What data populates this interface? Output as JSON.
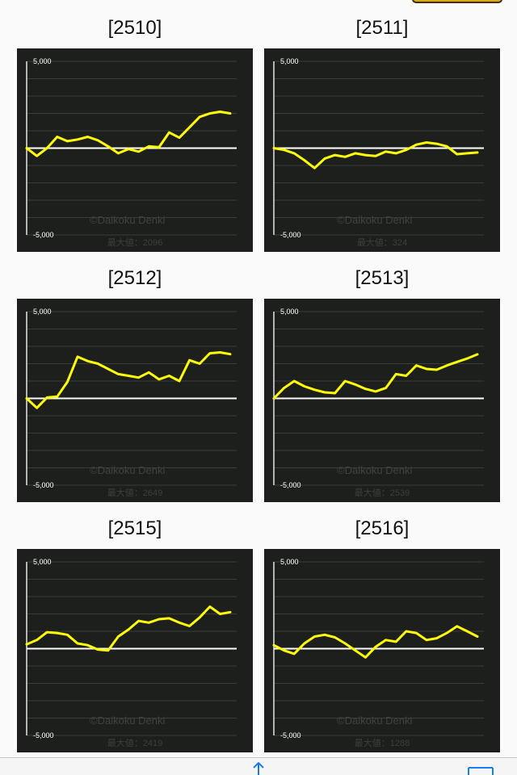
{
  "page": {
    "accent_color": "#ffff00",
    "chart_bg_color": "#1d1f1d",
    "toolbar_icons": [
      "share-icon",
      "bookmark-icon"
    ]
  },
  "chart_data": [
    {
      "type": "line",
      "label": "[2510]",
      "ylim": [
        -5000,
        5000
      ],
      "tick_labels": [
        "5,000",
        "-5,000"
      ],
      "watermark": "©Daikoku Denki",
      "max_value_text": "最大値：2096",
      "series": [
        {
          "x": [
            0,
            5,
            10,
            15,
            20,
            25,
            30,
            35,
            40,
            45,
            50,
            55,
            60,
            65,
            70,
            75,
            80,
            85,
            90,
            95,
            100
          ],
          "y": [
            0,
            -450,
            0,
            650,
            400,
            500,
            650,
            450,
            100,
            -300,
            -50,
            -200,
            100,
            50,
            900,
            600,
            1200,
            1800,
            2000,
            2096,
            2000
          ]
        }
      ]
    },
    {
      "type": "line",
      "label": "[2511]",
      "ylim": [
        -5000,
        5000
      ],
      "tick_labels": [
        "5,000",
        "-5,000"
      ],
      "watermark": "©Daikoku Denki",
      "max_value_text": "最大値：324",
      "series": [
        {
          "x": [
            0,
            5,
            10,
            15,
            20,
            25,
            30,
            35,
            40,
            45,
            50,
            55,
            60,
            65,
            70,
            75,
            80,
            85,
            90,
            95,
            100
          ],
          "y": [
            0,
            -100,
            -300,
            -700,
            -1150,
            -600,
            -400,
            -500,
            -300,
            -400,
            -450,
            -200,
            -300,
            -100,
            200,
            324,
            250,
            100,
            -350,
            -300,
            -250
          ]
        }
      ]
    },
    {
      "type": "line",
      "label": "[2512]",
      "ylim": [
        -5000,
        5000
      ],
      "tick_labels": [
        "5,000",
        "-5,000"
      ],
      "watermark": "©Daikoku Denki",
      "max_value_text": "最大値：2649",
      "series": [
        {
          "x": [
            0,
            5,
            10,
            15,
            20,
            25,
            30,
            35,
            40,
            45,
            50,
            55,
            60,
            65,
            70,
            75,
            80,
            85,
            90,
            95,
            100
          ],
          "y": [
            0,
            -550,
            50,
            100,
            950,
            2400,
            2150,
            2000,
            1700,
            1400,
            1300,
            1200,
            1500,
            1100,
            1300,
            1000,
            2200,
            2000,
            2600,
            2649,
            2550
          ]
        }
      ]
    },
    {
      "type": "line",
      "label": "[2513]",
      "ylim": [
        -5000,
        5000
      ],
      "tick_labels": [
        "5,000",
        "-5,000"
      ],
      "watermark": "©Daikoku Denki",
      "max_value_text": "最大値：2539",
      "series": [
        {
          "x": [
            0,
            5,
            10,
            15,
            20,
            25,
            30,
            35,
            40,
            45,
            50,
            55,
            60,
            65,
            70,
            75,
            80,
            85,
            90,
            95,
            100
          ],
          "y": [
            0,
            600,
            1000,
            700,
            500,
            350,
            300,
            1000,
            800,
            550,
            400,
            600,
            1400,
            1300,
            1900,
            1700,
            1650,
            1900,
            2100,
            2300,
            2539
          ]
        }
      ]
    },
    {
      "type": "line",
      "label": "[2515]",
      "ylim": [
        -5000,
        5000
      ],
      "tick_labels": [
        "5,000",
        "-5,000"
      ],
      "watermark": "©Daikoku Denki",
      "max_value_text": "最大値：2419",
      "series": [
        {
          "x": [
            0,
            5,
            10,
            15,
            20,
            25,
            30,
            35,
            40,
            45,
            50,
            55,
            60,
            65,
            70,
            75,
            80,
            85,
            90,
            95,
            100
          ],
          "y": [
            250,
            500,
            950,
            900,
            800,
            300,
            200,
            -50,
            -100,
            700,
            1100,
            1600,
            1500,
            1700,
            1750,
            1500,
            1300,
            1800,
            2419,
            2000,
            2100
          ]
        }
      ]
    },
    {
      "type": "line",
      "label": "[2516]",
      "ylim": [
        -5000,
        5000
      ],
      "tick_labels": [
        "5,000",
        "-5,000"
      ],
      "watermark": "©Daikoku Denki",
      "max_value_text": "最大値：1288",
      "series": [
        {
          "x": [
            0,
            5,
            10,
            15,
            20,
            25,
            30,
            35,
            40,
            45,
            50,
            55,
            60,
            65,
            70,
            75,
            80,
            85,
            90,
            95,
            100
          ],
          "y": [
            200,
            -100,
            -300,
            300,
            700,
            800,
            650,
            300,
            -100,
            -500,
            100,
            500,
            400,
            1000,
            900,
            500,
            600,
            900,
            1288,
            1000,
            700
          ]
        }
      ]
    }
  ]
}
